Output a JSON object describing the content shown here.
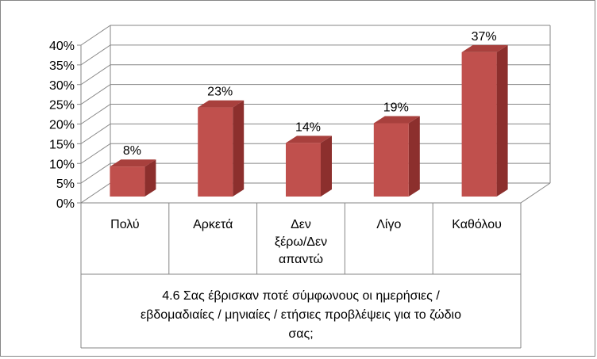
{
  "chart_data": {
    "type": "bar",
    "style": "3d-column",
    "categories": [
      [
        "Πολύ"
      ],
      [
        "Αρκετά"
      ],
      [
        "Δεν",
        "ξέρω/Δεν",
        "απαντώ"
      ],
      [
        "Λίγο"
      ],
      [
        "Καθόλου"
      ]
    ],
    "values": [
      8,
      23,
      14,
      19,
      37
    ],
    "data_labels": [
      "8%",
      "23%",
      "14%",
      "19%",
      "37%"
    ],
    "y_ticks": [
      "0%",
      "5%",
      "10%",
      "15%",
      "20%",
      "25%",
      "30%",
      "35%",
      "40%"
    ],
    "ylim": [
      0,
      40
    ],
    "xlabel_lines": [
      "4.6 Σας έβρισκαν ποτέ σύμφωνους οι ημερήσιες /",
      "εβδομαδιαίες / μηνιαίες / ετήσιες προβλέψεις για το ζώδιο",
      "σας;"
    ],
    "grid": true,
    "legend": "none",
    "colors": {
      "bar_front": "#c0504d",
      "bar_side": "#8c2f2d",
      "bar_top": "#a8403d",
      "gridline": "#868686"
    }
  }
}
